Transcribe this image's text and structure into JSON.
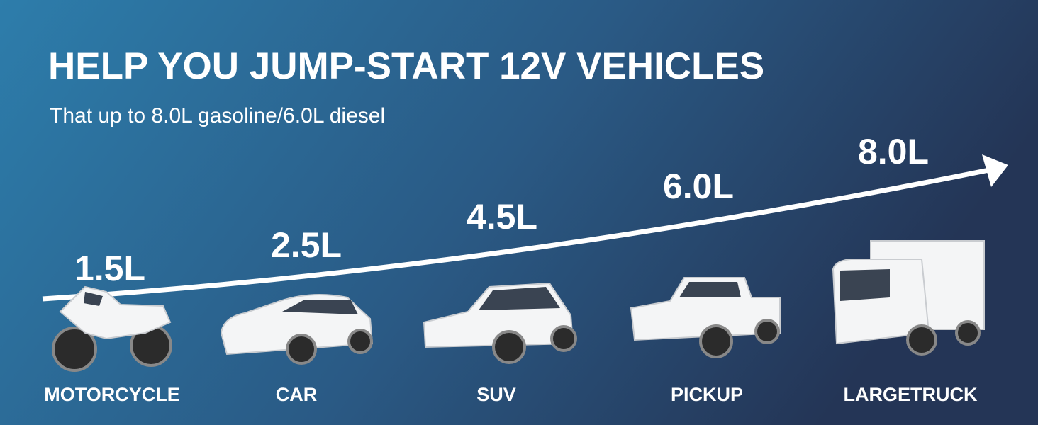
{
  "header": {
    "title": "HELP YOU JUMP-START 12V VEHICLES",
    "subtitle": "That up to 8.0L gasoline/6.0L diesel"
  },
  "vehicles": [
    {
      "engine": "1.5L",
      "label": "MOTORCYCLE"
    },
    {
      "engine": "2.5L",
      "label": "CAR"
    },
    {
      "engine": "4.5L",
      "label": "SUV"
    },
    {
      "engine": "6.0L",
      "label": "PICKUP"
    },
    {
      "engine": "8.0L",
      "label": "LARGETRUCK"
    }
  ]
}
